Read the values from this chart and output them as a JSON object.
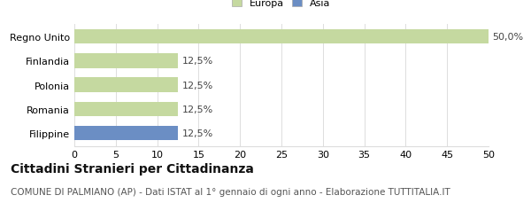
{
  "categories": [
    "Filippine",
    "Romania",
    "Polonia",
    "Finlandia",
    "Regno Unito"
  ],
  "values": [
    12.5,
    12.5,
    12.5,
    12.5,
    50.0
  ],
  "bar_colors": [
    "#6b8ec4",
    "#c5d9a0",
    "#c5d9a0",
    "#c5d9a0",
    "#c5d9a0"
  ],
  "bar_labels": [
    "12,5%",
    "12,5%",
    "12,5%",
    "12,5%",
    "50,0%"
  ],
  "xlim": [
    0,
    50
  ],
  "xticks": [
    0,
    5,
    10,
    15,
    20,
    25,
    30,
    35,
    40,
    45,
    50
  ],
  "legend_labels": [
    "Europa",
    "Asia"
  ],
  "legend_colors": [
    "#c5d9a0",
    "#6b8ec4"
  ],
  "title": "Cittadini Stranieri per Cittadinanza",
  "subtitle": "COMUNE DI PALMIANO (AP) - Dati ISTAT al 1° gennaio di ogni anno - Elaborazione TUTTITALIA.IT",
  "title_fontsize": 10,
  "subtitle_fontsize": 7.5,
  "tick_fontsize": 8,
  "bar_label_fontsize": 8,
  "background_color": "#ffffff",
  "grid_color": "#dddddd"
}
